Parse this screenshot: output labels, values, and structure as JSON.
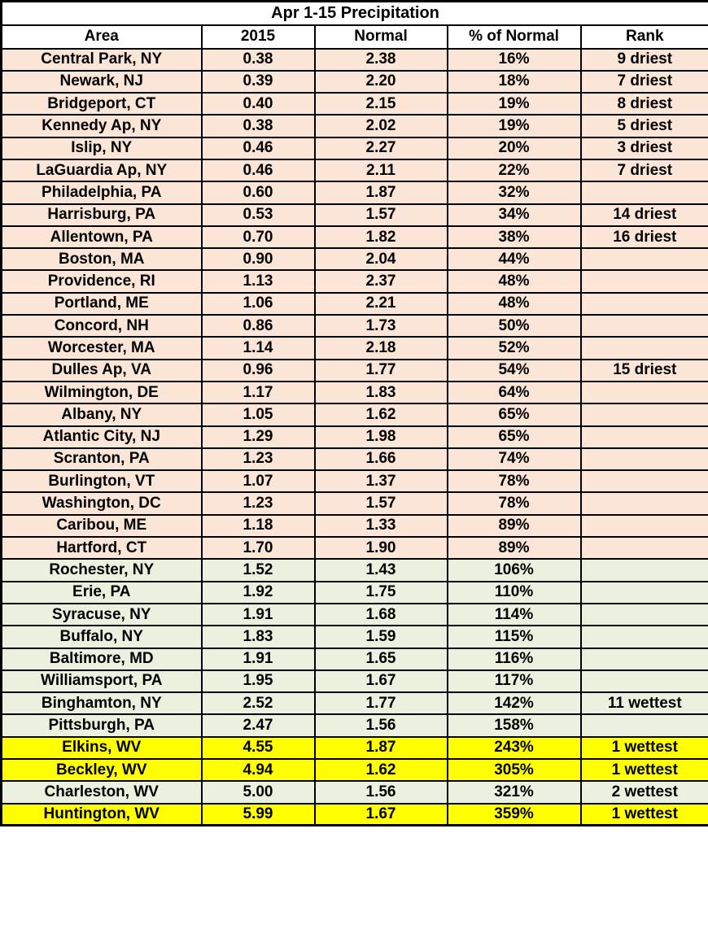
{
  "colors": {
    "peach": "#fbe5d6",
    "green": "#ebf1de",
    "yellow": "#ffff00",
    "border": "#000000",
    "header_bg": "#ffffff",
    "text": "#000000"
  },
  "chart_data": {
    "type": "table",
    "title": "Apr 1-15 Precipitation",
    "columns": [
      "Area",
      "2015",
      "Normal",
      "% of Normal",
      "Rank"
    ],
    "rows": [
      {
        "area": "Central Park, NY",
        "y2015": "0.38",
        "normal": "2.38",
        "pct_of_normal": "16%",
        "rank": "9 driest",
        "highlight": "peach"
      },
      {
        "area": "Newark, NJ",
        "y2015": "0.39",
        "normal": "2.20",
        "pct_of_normal": "18%",
        "rank": "7 driest",
        "highlight": "peach"
      },
      {
        "area": "Bridgeport, CT",
        "y2015": "0.40",
        "normal": "2.15",
        "pct_of_normal": "19%",
        "rank": "8 driest",
        "highlight": "peach"
      },
      {
        "area": "Kennedy Ap, NY",
        "y2015": "0.38",
        "normal": "2.02",
        "pct_of_normal": "19%",
        "rank": "5 driest",
        "highlight": "peach"
      },
      {
        "area": "Islip, NY",
        "y2015": "0.46",
        "normal": "2.27",
        "pct_of_normal": "20%",
        "rank": "3 driest",
        "highlight": "peach"
      },
      {
        "area": "LaGuardia Ap, NY",
        "y2015": "0.46",
        "normal": "2.11",
        "pct_of_normal": "22%",
        "rank": "7 driest",
        "highlight": "peach"
      },
      {
        "area": "Philadelphia, PA",
        "y2015": "0.60",
        "normal": "1.87",
        "pct_of_normal": "32%",
        "rank": "",
        "highlight": "peach"
      },
      {
        "area": "Harrisburg, PA",
        "y2015": "0.53",
        "normal": "1.57",
        "pct_of_normal": "34%",
        "rank": "14 driest",
        "highlight": "peach"
      },
      {
        "area": "Allentown, PA",
        "y2015": "0.70",
        "normal": "1.82",
        "pct_of_normal": "38%",
        "rank": "16 driest",
        "highlight": "peach"
      },
      {
        "area": "Boston, MA",
        "y2015": "0.90",
        "normal": "2.04",
        "pct_of_normal": "44%",
        "rank": "",
        "highlight": "peach"
      },
      {
        "area": "Providence, RI",
        "y2015": "1.13",
        "normal": "2.37",
        "pct_of_normal": "48%",
        "rank": "",
        "highlight": "peach"
      },
      {
        "area": "Portland, ME",
        "y2015": "1.06",
        "normal": "2.21",
        "pct_of_normal": "48%",
        "rank": "",
        "highlight": "peach"
      },
      {
        "area": "Concord, NH",
        "y2015": "0.86",
        "normal": "1.73",
        "pct_of_normal": "50%",
        "rank": "",
        "highlight": "peach"
      },
      {
        "area": "Worcester, MA",
        "y2015": "1.14",
        "normal": "2.18",
        "pct_of_normal": "52%",
        "rank": "",
        "highlight": "peach"
      },
      {
        "area": "Dulles Ap, VA",
        "y2015": "0.96",
        "normal": "1.77",
        "pct_of_normal": "54%",
        "rank": "15 driest",
        "highlight": "peach"
      },
      {
        "area": "Wilmington, DE",
        "y2015": "1.17",
        "normal": "1.83",
        "pct_of_normal": "64%",
        "rank": "",
        "highlight": "peach"
      },
      {
        "area": "Albany, NY",
        "y2015": "1.05",
        "normal": "1.62",
        "pct_of_normal": "65%",
        "rank": "",
        "highlight": "peach"
      },
      {
        "area": "Atlantic City, NJ",
        "y2015": "1.29",
        "normal": "1.98",
        "pct_of_normal": "65%",
        "rank": "",
        "highlight": "peach"
      },
      {
        "area": "Scranton, PA",
        "y2015": "1.23",
        "normal": "1.66",
        "pct_of_normal": "74%",
        "rank": "",
        "highlight": "peach"
      },
      {
        "area": "Burlington, VT",
        "y2015": "1.07",
        "normal": "1.37",
        "pct_of_normal": "78%",
        "rank": "",
        "highlight": "peach"
      },
      {
        "area": "Washington, DC",
        "y2015": "1.23",
        "normal": "1.57",
        "pct_of_normal": "78%",
        "rank": "",
        "highlight": "peach"
      },
      {
        "area": "Caribou, ME",
        "y2015": "1.18",
        "normal": "1.33",
        "pct_of_normal": "89%",
        "rank": "",
        "highlight": "peach"
      },
      {
        "area": "Hartford, CT",
        "y2015": "1.70",
        "normal": "1.90",
        "pct_of_normal": "89%",
        "rank": "",
        "highlight": "peach"
      },
      {
        "area": "Rochester, NY",
        "y2015": "1.52",
        "normal": "1.43",
        "pct_of_normal": "106%",
        "rank": "",
        "highlight": "green"
      },
      {
        "area": "Erie, PA",
        "y2015": "1.92",
        "normal": "1.75",
        "pct_of_normal": "110%",
        "rank": "",
        "highlight": "green"
      },
      {
        "area": "Syracuse, NY",
        "y2015": "1.91",
        "normal": "1.68",
        "pct_of_normal": "114%",
        "rank": "",
        "highlight": "green"
      },
      {
        "area": "Buffalo, NY",
        "y2015": "1.83",
        "normal": "1.59",
        "pct_of_normal": "115%",
        "rank": "",
        "highlight": "green"
      },
      {
        "area": "Baltimore, MD",
        "y2015": "1.91",
        "normal": "1.65",
        "pct_of_normal": "116%",
        "rank": "",
        "highlight": "green"
      },
      {
        "area": "Williamsport, PA",
        "y2015": "1.95",
        "normal": "1.67",
        "pct_of_normal": "117%",
        "rank": "",
        "highlight": "green"
      },
      {
        "area": "Binghamton, NY",
        "y2015": "2.52",
        "normal": "1.77",
        "pct_of_normal": "142%",
        "rank": "11 wettest",
        "highlight": "green"
      },
      {
        "area": "Pittsburgh, PA",
        "y2015": "2.47",
        "normal": "1.56",
        "pct_of_normal": "158%",
        "rank": "",
        "highlight": "green"
      },
      {
        "area": "Elkins, WV",
        "y2015": "4.55",
        "normal": "1.87",
        "pct_of_normal": "243%",
        "rank": "1 wettest",
        "highlight": "yellow"
      },
      {
        "area": "Beckley, WV",
        "y2015": "4.94",
        "normal": "1.62",
        "pct_of_normal": "305%",
        "rank": "1 wettest",
        "highlight": "yellow"
      },
      {
        "area": "Charleston, WV",
        "y2015": "5.00",
        "normal": "1.56",
        "pct_of_normal": "321%",
        "rank": "2 wettest",
        "highlight": "green"
      },
      {
        "area": "Huntington, WV",
        "y2015": "5.99",
        "normal": "1.67",
        "pct_of_normal": "359%",
        "rank": "1 wettest",
        "highlight": "yellow"
      }
    ]
  }
}
